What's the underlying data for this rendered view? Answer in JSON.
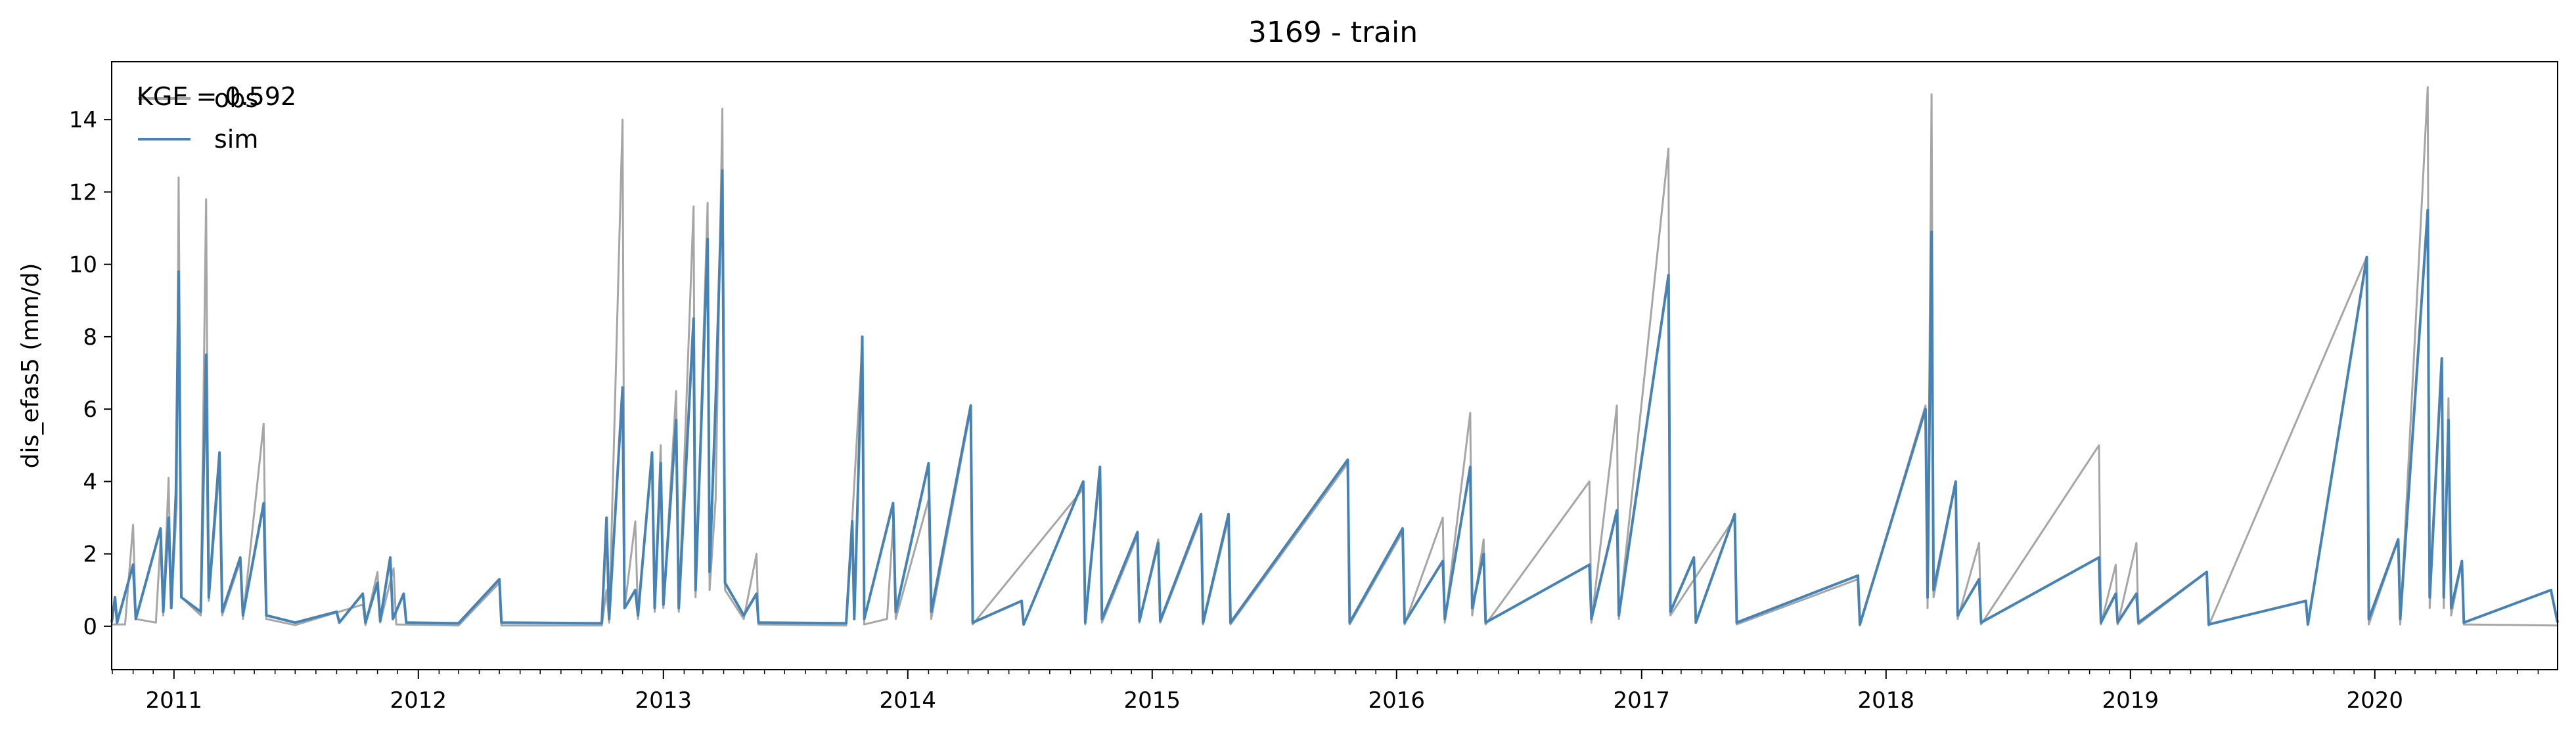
{
  "chart_data": {
    "type": "line",
    "title": "3169 - train",
    "xlabel": "",
    "ylabel": "dis_efas5 (mm/d)",
    "xlim": [
      "2010-09-30",
      "2020-09-30"
    ],
    "ylim": [
      -1.2,
      15.6
    ],
    "yticks": [
      0,
      2,
      4,
      6,
      8,
      10,
      12,
      14
    ],
    "xticks": [
      {
        "date": "2011-01-01",
        "label": "2011"
      },
      {
        "date": "2012-01-01",
        "label": "2012"
      },
      {
        "date": "2013-01-01",
        "label": "2013"
      },
      {
        "date": "2014-01-01",
        "label": "2014"
      },
      {
        "date": "2015-01-01",
        "label": "2015"
      },
      {
        "date": "2016-01-01",
        "label": "2016"
      },
      {
        "date": "2017-01-01",
        "label": "2017"
      },
      {
        "date": "2018-01-01",
        "label": "2018"
      },
      {
        "date": "2019-01-01",
        "label": "2019"
      },
      {
        "date": "2020-01-01",
        "label": "2020"
      }
    ],
    "legend": {
      "position": "top-left",
      "annotation": "KGE = 0.592"
    },
    "grid": false,
    "series": [
      {
        "name": "obs",
        "color": "#a6a6a6",
        "points": [
          [
            "2010-09-30",
            0.05
          ],
          [
            "2010-10-20",
            0.05
          ],
          [
            "2010-11-01",
            2.8
          ],
          [
            "2010-11-05",
            0.2
          ],
          [
            "2010-12-05",
            0.1
          ],
          [
            "2010-12-12",
            2.4
          ],
          [
            "2010-12-16",
            0.3
          ],
          [
            "2010-12-24",
            4.1
          ],
          [
            "2010-12-28",
            0.5
          ],
          [
            "2011-01-05",
            3.3
          ],
          [
            "2011-01-08",
            12.4
          ],
          [
            "2011-01-12",
            0.8
          ],
          [
            "2011-02-10",
            0.3
          ],
          [
            "2011-02-18",
            11.8
          ],
          [
            "2011-02-22",
            0.7
          ],
          [
            "2011-03-10",
            4.4
          ],
          [
            "2011-03-14",
            0.3
          ],
          [
            "2011-04-10",
            1.8
          ],
          [
            "2011-04-14",
            0.2
          ],
          [
            "2011-05-15",
            5.6
          ],
          [
            "2011-05-19",
            0.2
          ],
          [
            "2011-07-01",
            0.03
          ],
          [
            "2011-10-10",
            0.6
          ],
          [
            "2011-10-14",
            0.03
          ],
          [
            "2011-11-01",
            1.5
          ],
          [
            "2011-11-05",
            0.1
          ],
          [
            "2011-11-25",
            1.6
          ],
          [
            "2011-11-29",
            0.05
          ],
          [
            "2012-03-01",
            0.02
          ],
          [
            "2012-05-01",
            1.2
          ],
          [
            "2012-05-04",
            0.02
          ],
          [
            "2012-10-01",
            0.02
          ],
          [
            "2012-10-08",
            1.0
          ],
          [
            "2012-10-12",
            0.1
          ],
          [
            "2012-11-01",
            14.0
          ],
          [
            "2012-11-04",
            0.5
          ],
          [
            "2012-11-20",
            2.9
          ],
          [
            "2012-11-24",
            0.2
          ],
          [
            "2012-12-15",
            4.8
          ],
          [
            "2012-12-19",
            0.4
          ],
          [
            "2012-12-28",
            5.0
          ],
          [
            "2013-01-01",
            0.5
          ],
          [
            "2013-01-20",
            6.5
          ],
          [
            "2013-01-24",
            0.4
          ],
          [
            "2013-02-15",
            11.6
          ],
          [
            "2013-02-18",
            0.8
          ],
          [
            "2013-03-08",
            11.7
          ],
          [
            "2013-03-11",
            1.0
          ],
          [
            "2013-03-20",
            3.5
          ],
          [
            "2013-03-30",
            14.3
          ],
          [
            "2013-04-03",
            1.0
          ],
          [
            "2013-05-01",
            0.2
          ],
          [
            "2013-05-20",
            2.0
          ],
          [
            "2013-05-23",
            0.05
          ],
          [
            "2013-10-01",
            0.02
          ],
          [
            "2013-10-25",
            7.8
          ],
          [
            "2013-10-28",
            0.05
          ],
          [
            "2013-12-01",
            0.2
          ],
          [
            "2013-12-10",
            2.8
          ],
          [
            "2013-12-14",
            0.2
          ],
          [
            "2014-02-01",
            3.5
          ],
          [
            "2014-02-05",
            0.2
          ],
          [
            "2014-04-05",
            6.0
          ],
          [
            "2014-04-08",
            0.05
          ],
          [
            "2014-09-20",
            3.8
          ],
          [
            "2014-09-23",
            0.05
          ],
          [
            "2014-10-15",
            4.2
          ],
          [
            "2014-10-18",
            0.1
          ],
          [
            "2014-12-10",
            2.5
          ],
          [
            "2014-12-13",
            0.1
          ],
          [
            "2015-01-10",
            2.4
          ],
          [
            "2015-01-13",
            0.1
          ],
          [
            "2015-03-15",
            3.0
          ],
          [
            "2015-03-18",
            0.05
          ],
          [
            "2015-04-25",
            3.0
          ],
          [
            "2015-04-28",
            0.05
          ],
          [
            "2015-10-20",
            4.5
          ],
          [
            "2015-10-23",
            0.05
          ],
          [
            "2016-01-10",
            2.6
          ],
          [
            "2016-01-13",
            0.05
          ],
          [
            "2016-03-10",
            3.0
          ],
          [
            "2016-03-13",
            0.1
          ],
          [
            "2016-04-20",
            5.9
          ],
          [
            "2016-04-23",
            0.3
          ],
          [
            "2016-05-10",
            2.4
          ],
          [
            "2016-05-13",
            0.05
          ],
          [
            "2016-10-15",
            4.0
          ],
          [
            "2016-10-18",
            0.1
          ],
          [
            "2016-11-25",
            6.1
          ],
          [
            "2016-11-28",
            0.2
          ],
          [
            "2017-02-10",
            13.2
          ],
          [
            "2017-02-13",
            0.3
          ],
          [
            "2017-05-20",
            3.0
          ],
          [
            "2017-05-23",
            0.05
          ],
          [
            "2017-11-20",
            1.3
          ],
          [
            "2017-11-23",
            0.02
          ],
          [
            "2018-03-01",
            6.1
          ],
          [
            "2018-03-04",
            0.5
          ],
          [
            "2018-03-10",
            14.7
          ],
          [
            "2018-03-13",
            0.8
          ],
          [
            "2018-04-15",
            4.0
          ],
          [
            "2018-04-18",
            0.2
          ],
          [
            "2018-05-20",
            2.3
          ],
          [
            "2018-05-23",
            0.05
          ],
          [
            "2018-11-15",
            5.0
          ],
          [
            "2018-11-18",
            0.05
          ],
          [
            "2018-12-10",
            1.7
          ],
          [
            "2018-12-13",
            0.05
          ],
          [
            "2019-01-10",
            2.3
          ],
          [
            "2019-01-13",
            0.05
          ],
          [
            "2019-04-25",
            1.5
          ],
          [
            "2019-04-28",
            0.02
          ],
          [
            "2019-12-20",
            10.2
          ],
          [
            "2019-12-23",
            0.05
          ],
          [
            "2020-02-05",
            2.4
          ],
          [
            "2020-02-08",
            0.05
          ],
          [
            "2020-03-20",
            14.9
          ],
          [
            "2020-03-23",
            0.5
          ],
          [
            "2020-04-10",
            7.3
          ],
          [
            "2020-04-13",
            0.5
          ],
          [
            "2020-04-20",
            6.3
          ],
          [
            "2020-04-24",
            0.3
          ],
          [
            "2020-05-10",
            1.8
          ],
          [
            "2020-05-13",
            0.05
          ],
          [
            "2020-09-30",
            0.02
          ]
        ]
      },
      {
        "name": "sim",
        "color": "#4682b4",
        "points": [
          [
            "2010-09-30",
            0.1
          ],
          [
            "2010-10-05",
            0.8
          ],
          [
            "2010-10-08",
            0.1
          ],
          [
            "2010-11-01",
            1.7
          ],
          [
            "2010-11-05",
            0.2
          ],
          [
            "2010-12-12",
            2.7
          ],
          [
            "2010-12-16",
            0.4
          ],
          [
            "2010-12-24",
            3.0
          ],
          [
            "2010-12-28",
            0.5
          ],
          [
            "2011-01-04",
            3.7
          ],
          [
            "2011-01-08",
            9.8
          ],
          [
            "2011-01-12",
            0.8
          ],
          [
            "2011-02-10",
            0.4
          ],
          [
            "2011-02-18",
            7.5
          ],
          [
            "2011-02-22",
            0.8
          ],
          [
            "2011-03-10",
            4.8
          ],
          [
            "2011-03-14",
            0.4
          ],
          [
            "2011-04-10",
            1.9
          ],
          [
            "2011-04-14",
            0.3
          ],
          [
            "2011-05-15",
            3.4
          ],
          [
            "2011-05-19",
            0.3
          ],
          [
            "2011-07-01",
            0.1
          ],
          [
            "2011-09-01",
            0.4
          ],
          [
            "2011-09-05",
            0.1
          ],
          [
            "2011-10-10",
            0.9
          ],
          [
            "2011-10-14",
            0.1
          ],
          [
            "2011-11-01",
            1.2
          ],
          [
            "2011-11-05",
            0.15
          ],
          [
            "2011-11-20",
            1.9
          ],
          [
            "2011-11-24",
            0.2
          ],
          [
            "2011-12-10",
            0.9
          ],
          [
            "2011-12-14",
            0.1
          ],
          [
            "2012-03-01",
            0.08
          ],
          [
            "2012-05-01",
            1.3
          ],
          [
            "2012-05-04",
            0.1
          ],
          [
            "2012-10-01",
            0.08
          ],
          [
            "2012-10-08",
            3.0
          ],
          [
            "2012-10-12",
            0.2
          ],
          [
            "2012-11-01",
            6.6
          ],
          [
            "2012-11-04",
            0.5
          ],
          [
            "2012-11-20",
            1.0
          ],
          [
            "2012-11-24",
            0.3
          ],
          [
            "2012-12-15",
            4.8
          ],
          [
            "2012-12-19",
            0.5
          ],
          [
            "2012-12-28",
            4.5
          ],
          [
            "2013-01-01",
            0.6
          ],
          [
            "2013-01-20",
            5.7
          ],
          [
            "2013-01-24",
            0.5
          ],
          [
            "2013-02-15",
            8.5
          ],
          [
            "2013-02-18",
            1.0
          ],
          [
            "2013-03-08",
            10.7
          ],
          [
            "2013-03-11",
            1.5
          ],
          [
            "2013-03-20",
            6.2
          ],
          [
            "2013-03-30",
            12.6
          ],
          [
            "2013-04-03",
            1.2
          ],
          [
            "2013-05-01",
            0.3
          ],
          [
            "2013-05-20",
            0.9
          ],
          [
            "2013-05-23",
            0.1
          ],
          [
            "2013-10-01",
            0.08
          ],
          [
            "2013-10-10",
            2.9
          ],
          [
            "2013-10-13",
            0.2
          ],
          [
            "2013-10-25",
            8.0
          ],
          [
            "2013-10-28",
            0.2
          ],
          [
            "2013-12-10",
            3.4
          ],
          [
            "2013-12-14",
            0.4
          ],
          [
            "2014-02-01",
            4.5
          ],
          [
            "2014-02-05",
            0.4
          ],
          [
            "2014-04-05",
            6.1
          ],
          [
            "2014-04-08",
            0.1
          ],
          [
            "2014-06-20",
            0.7
          ],
          [
            "2014-06-23",
            0.05
          ],
          [
            "2014-09-20",
            4.0
          ],
          [
            "2014-09-23",
            0.1
          ],
          [
            "2014-10-15",
            4.4
          ],
          [
            "2014-10-18",
            0.2
          ],
          [
            "2014-12-10",
            2.6
          ],
          [
            "2014-12-13",
            0.15
          ],
          [
            "2015-01-10",
            2.3
          ],
          [
            "2015-01-13",
            0.15
          ],
          [
            "2015-03-15",
            3.1
          ],
          [
            "2015-03-18",
            0.1
          ],
          [
            "2015-04-25",
            3.1
          ],
          [
            "2015-04-28",
            0.1
          ],
          [
            "2015-10-20",
            4.6
          ],
          [
            "2015-10-23",
            0.1
          ],
          [
            "2016-01-10",
            2.7
          ],
          [
            "2016-01-13",
            0.1
          ],
          [
            "2016-03-10",
            1.8
          ],
          [
            "2016-03-13",
            0.2
          ],
          [
            "2016-04-20",
            4.4
          ],
          [
            "2016-04-23",
            0.5
          ],
          [
            "2016-05-10",
            2.0
          ],
          [
            "2016-05-13",
            0.1
          ],
          [
            "2016-10-15",
            1.7
          ],
          [
            "2016-10-18",
            0.2
          ],
          [
            "2016-11-25",
            3.2
          ],
          [
            "2016-11-28",
            0.3
          ],
          [
            "2017-02-10",
            9.7
          ],
          [
            "2017-02-13",
            0.4
          ],
          [
            "2017-03-20",
            1.9
          ],
          [
            "2017-03-23",
            0.1
          ],
          [
            "2017-05-20",
            3.1
          ],
          [
            "2017-05-23",
            0.1
          ],
          [
            "2017-11-20",
            1.4
          ],
          [
            "2017-11-23",
            0.05
          ],
          [
            "2018-03-01",
            6.0
          ],
          [
            "2018-03-04",
            0.8
          ],
          [
            "2018-03-10",
            10.9
          ],
          [
            "2018-03-13",
            1.0
          ],
          [
            "2018-04-15",
            4.0
          ],
          [
            "2018-04-18",
            0.3
          ],
          [
            "2018-05-20",
            1.3
          ],
          [
            "2018-05-23",
            0.1
          ],
          [
            "2018-11-15",
            1.9
          ],
          [
            "2018-11-18",
            0.1
          ],
          [
            "2018-12-10",
            0.9
          ],
          [
            "2018-12-13",
            0.1
          ],
          [
            "2019-01-10",
            0.9
          ],
          [
            "2019-01-13",
            0.1
          ],
          [
            "2019-04-25",
            1.5
          ],
          [
            "2019-04-28",
            0.05
          ],
          [
            "2019-09-20",
            0.7
          ],
          [
            "2019-09-23",
            0.05
          ],
          [
            "2019-12-20",
            10.2
          ],
          [
            "2019-12-23",
            0.2
          ],
          [
            "2020-02-05",
            2.4
          ],
          [
            "2020-02-08",
            0.2
          ],
          [
            "2020-03-20",
            11.5
          ],
          [
            "2020-03-23",
            0.8
          ],
          [
            "2020-04-10",
            7.4
          ],
          [
            "2020-04-13",
            0.8
          ],
          [
            "2020-04-20",
            5.7
          ],
          [
            "2020-04-24",
            0.5
          ],
          [
            "2020-05-10",
            1.8
          ],
          [
            "2020-05-13",
            0.1
          ],
          [
            "2020-09-20",
            1.0
          ],
          [
            "2020-09-30",
            0.1
          ]
        ]
      }
    ]
  }
}
